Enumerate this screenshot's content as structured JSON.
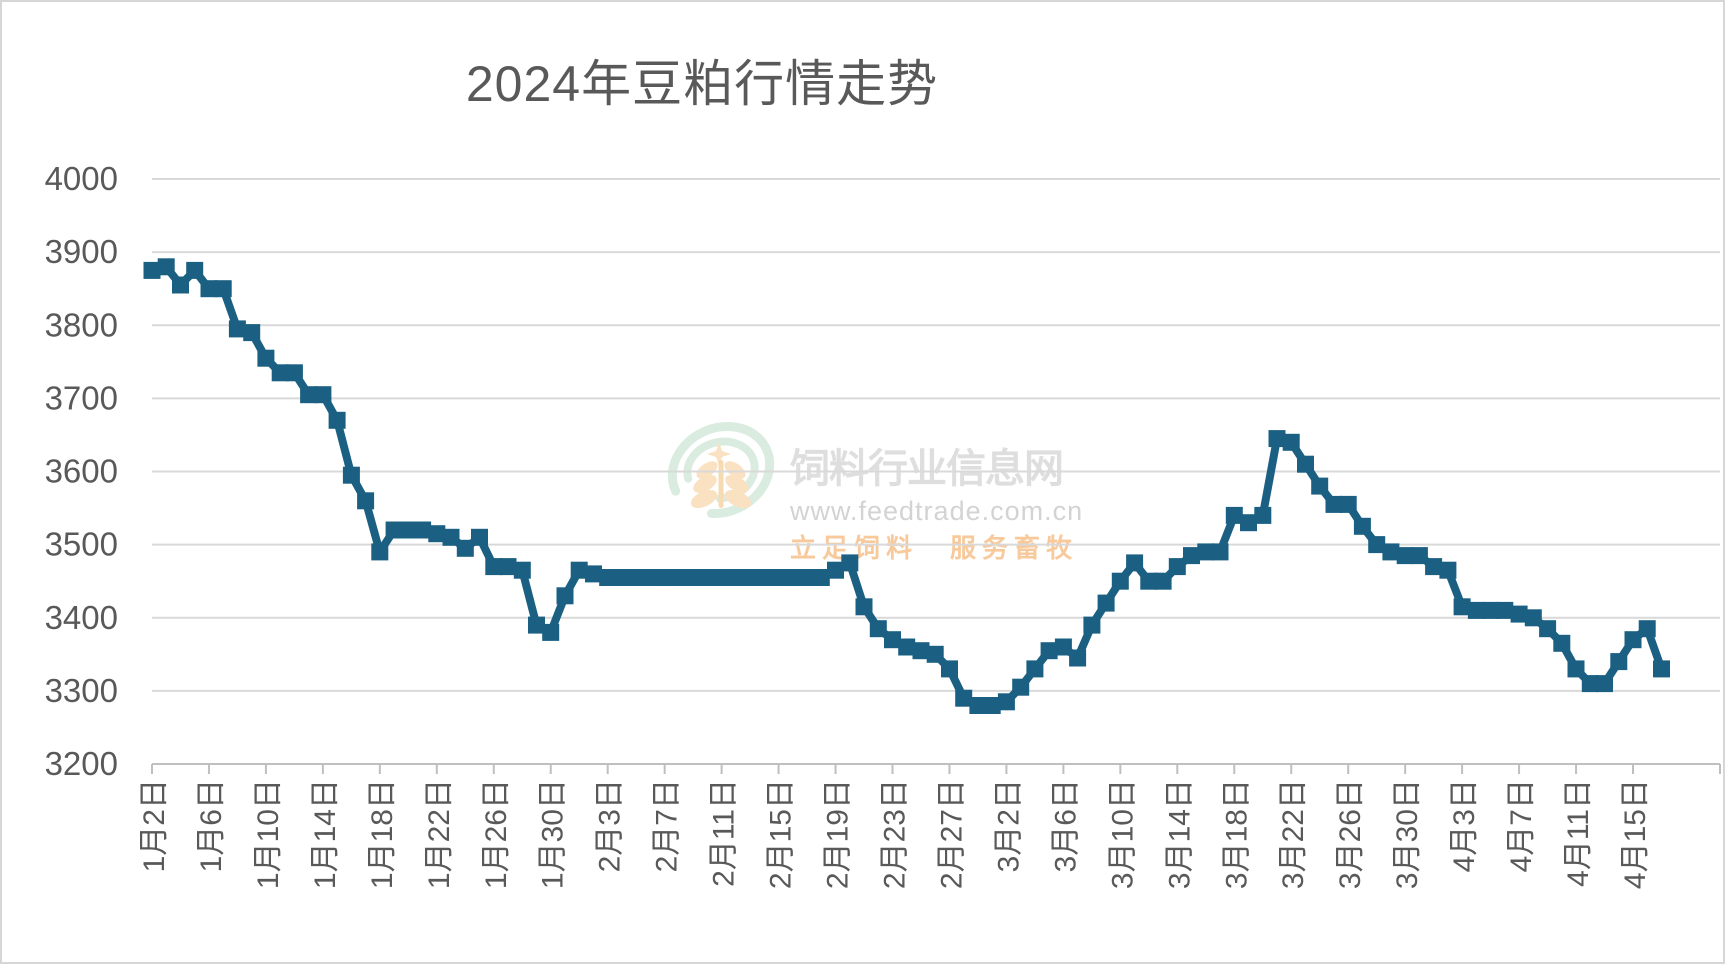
{
  "title": "2024年豆粕行情走势",
  "watermark": {
    "site_name": "饲料行业信息网",
    "url": "www.feedtrade.com.cn",
    "slogan": "立足饲料　服务畜牧",
    "logo": "feedtrade-wheat-rings-logo"
  },
  "colors": {
    "series_line": "#1b6082",
    "gridline": "#d9d9d9",
    "axis_line": "#bfbfbf",
    "tick_mark": "#bfbfbf",
    "axis_label": "#595959",
    "title_text": "#595959",
    "watermark_ring_green": "#cfe6d8",
    "watermark_wheat_orange": "#f8d9ae",
    "watermark_text_gray": "#d9d9d9",
    "watermark_url_gray": "#cccccc",
    "watermark_slogan_orange": "#f6c08a"
  },
  "chart_data": {
    "type": "line",
    "title": "2024年豆粕行情走势",
    "xlabel": "",
    "ylabel": "",
    "legend": "none",
    "grid": "horizontal",
    "marker": "square",
    "ylim": [
      3200,
      4000
    ],
    "y_ticks": [
      3200,
      3300,
      3400,
      3500,
      3600,
      3700,
      3800,
      3900,
      4000
    ],
    "x_tick_interval_days": 4,
    "x_tick_labels": [
      "1月2日",
      "1月6日",
      "1月10日",
      "1月14日",
      "1月18日",
      "1月22日",
      "1月26日",
      "1月30日",
      "2月3日",
      "2月7日",
      "2月11日",
      "2月15日",
      "2月19日",
      "2月23日",
      "2月27日",
      "3月2日",
      "3月6日",
      "3月10日",
      "3月14日",
      "3月18日",
      "3月22日",
      "3月26日",
      "3月30日",
      "4月3日",
      "4月7日",
      "4月11日",
      "4月15日"
    ],
    "dates": [
      "1月2日",
      "1月3日",
      "1月4日",
      "1月5日",
      "1月6日",
      "1月7日",
      "1月8日",
      "1月9日",
      "1月10日",
      "1月11日",
      "1月12日",
      "1月13日",
      "1月14日",
      "1月15日",
      "1月16日",
      "1月17日",
      "1月18日",
      "1月19日",
      "1月20日",
      "1月21日",
      "1月22日",
      "1月23日",
      "1月24日",
      "1月25日",
      "1月26日",
      "1月27日",
      "1月28日",
      "1月29日",
      "1月30日",
      "1月31日",
      "2月1日",
      "2月2日",
      "2月3日",
      "2月4日",
      "2月5日",
      "2月6日",
      "2月7日",
      "2月8日",
      "2月9日",
      "2月10日",
      "2月11日",
      "2月12日",
      "2月13日",
      "2月14日",
      "2月15日",
      "2月16日",
      "2月17日",
      "2月18日",
      "2月19日",
      "2月20日",
      "2月21日",
      "2月22日",
      "2月23日",
      "2月24日",
      "2月25日",
      "2月26日",
      "2月27日",
      "2月28日",
      "2月29日",
      "3月1日",
      "3月2日",
      "3月3日",
      "3月4日",
      "3月5日",
      "3月6日",
      "3月7日",
      "3月8日",
      "3月9日",
      "3月10日",
      "3月11日",
      "3月12日",
      "3月13日",
      "3月14日",
      "3月15日",
      "3月16日",
      "3月17日",
      "3月18日",
      "3月19日",
      "3月20日",
      "3月21日",
      "3月22日",
      "3月23日",
      "3月24日",
      "3月25日",
      "3月26日",
      "3月27日",
      "3月28日",
      "3月29日",
      "3月30日",
      "3月31日",
      "4月1日",
      "4月2日",
      "4月3日",
      "4月4日",
      "4月5日",
      "4月6日",
      "4月7日",
      "4月8日",
      "4月9日",
      "4月10日",
      "4月11日",
      "4月12日",
      "4月13日",
      "4月14日",
      "4月15日",
      "4月16日",
      "4月17日"
    ],
    "values": [
      3875,
      3880,
      3855,
      3875,
      3850,
      3850,
      3795,
      3790,
      3755,
      3735,
      3735,
      3705,
      3705,
      3670,
      3595,
      3560,
      3490,
      3520,
      3520,
      3520,
      3515,
      3510,
      3495,
      3510,
      3470,
      3470,
      3465,
      3390,
      3380,
      3430,
      3465,
      3460,
      3455,
      3455,
      3455,
      3455,
      3455,
      3455,
      3455,
      3455,
      3455,
      3455,
      3455,
      3455,
      3455,
      3455,
      3455,
      3455,
      3465,
      3475,
      3415,
      3385,
      3370,
      3360,
      3355,
      3350,
      3330,
      3290,
      3280,
      3280,
      3285,
      3305,
      3330,
      3355,
      3360,
      3345,
      3390,
      3420,
      3450,
      3475,
      3450,
      3450,
      3470,
      3485,
      3490,
      3490,
      3540,
      3530,
      3540,
      3645,
      3640,
      3610,
      3580,
      3555,
      3555,
      3525,
      3500,
      3490,
      3485,
      3485,
      3470,
      3465,
      3415,
      3410,
      3410,
      3410,
      3405,
      3400,
      3385,
      3365,
      3330,
      3310,
      3310,
      3340,
      3370,
      3385,
      3330
    ]
  }
}
